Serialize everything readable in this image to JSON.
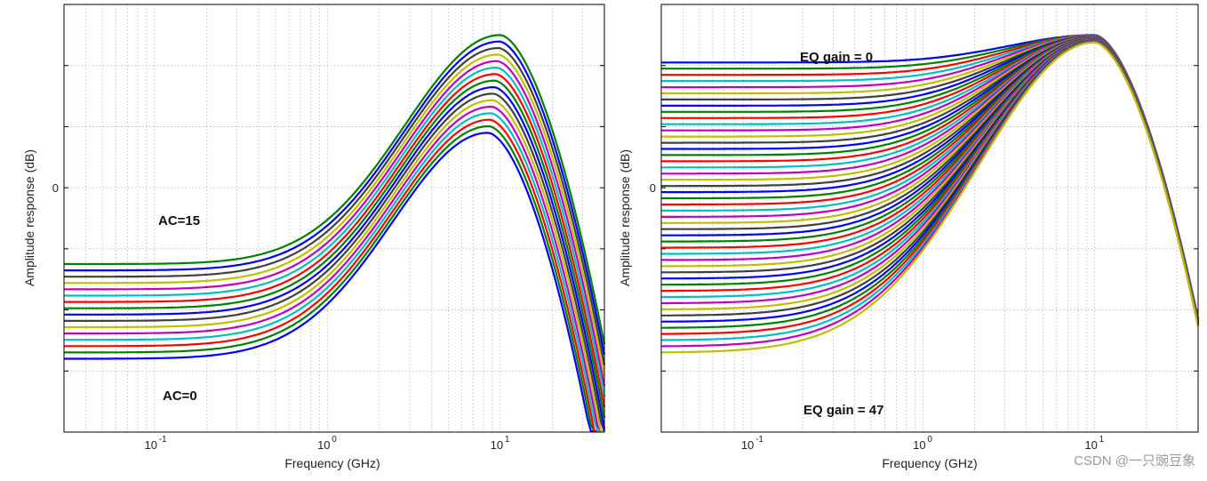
{
  "chart_data": [
    {
      "type": "line",
      "xlabel": "Frequency (GHz)",
      "ylabel": "Amplitude response (dB)",
      "x_scale": "log",
      "xlim": [
        0.03,
        40
      ],
      "x_ticks": [
        {
          "base": "10",
          "exp": "-1"
        },
        {
          "base": "10",
          "exp": "0"
        },
        {
          "base": "10",
          "exp": "1"
        }
      ],
      "y_ticks": [
        "0"
      ],
      "grid": true,
      "series_count": 16,
      "low_freq_level": {
        "first": -28,
        "last": -12.5
      },
      "peak": {
        "first": {
          "x": 8.5,
          "y": 9
        },
        "last": {
          "x": 10,
          "y": 25
        }
      },
      "annotations": [
        {
          "text": "AC=15"
        },
        {
          "text": "AC=0"
        }
      ]
    },
    {
      "type": "line",
      "xlabel": "Frequency (GHz)",
      "ylabel": "Amplitude response (dB)",
      "x_scale": "log",
      "xlim": [
        0.03,
        40
      ],
      "x_ticks": [
        {
          "base": "10",
          "exp": "-1"
        },
        {
          "base": "10",
          "exp": "0"
        },
        {
          "base": "10",
          "exp": "1"
        }
      ],
      "y_ticks": [
        "0"
      ],
      "grid": true,
      "series_count": 48,
      "low_freq_level": {
        "first": 20.5,
        "last": -27
      },
      "peak": {
        "x": 10,
        "y": 25
      },
      "annotations": [
        {
          "text": "EQ gain = 0"
        },
        {
          "text": "EQ gain = 47"
        }
      ]
    }
  ],
  "colors": [
    "#0000ff",
    "#008000",
    "#ff0000",
    "#00bfbf",
    "#bf00bf",
    "#bfbf00",
    "#404040"
  ],
  "watermark": "CSDN @一只豌豆象"
}
